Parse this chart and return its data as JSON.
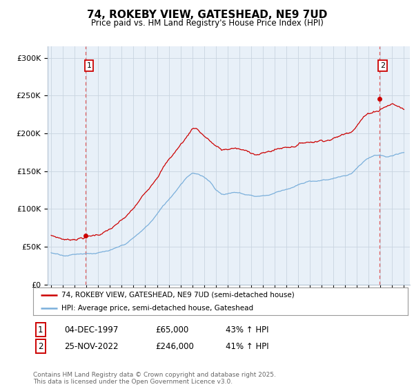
{
  "title_line1": "74, ROKEBY VIEW, GATESHEAD, NE9 7UD",
  "title_line2": "Price paid vs. HM Land Registry's House Price Index (HPI)",
  "ylabel_ticks": [
    "£0",
    "£50K",
    "£100K",
    "£150K",
    "£200K",
    "£250K",
    "£300K"
  ],
  "ytick_values": [
    0,
    50000,
    100000,
    150000,
    200000,
    250000,
    300000
  ],
  "ylim": [
    0,
    315000
  ],
  "xlim_start": 1994.7,
  "xlim_end": 2025.5,
  "legend_line1": "74, ROKEBY VIEW, GATESHEAD, NE9 7UD (semi-detached house)",
  "legend_line2": "HPI: Average price, semi-detached house, Gateshead",
  "transaction1_date": "04-DEC-1997",
  "transaction1_price": "£65,000",
  "transaction1_hpi": "43% ↑ HPI",
  "transaction1_x": 1997.92,
  "transaction1_y": 65000,
  "transaction2_date": "25-NOV-2022",
  "transaction2_price": "£246,000",
  "transaction2_hpi": "41% ↑ HPI",
  "transaction2_x": 2022.9,
  "transaction2_y": 246000,
  "line_color_red": "#cc0000",
  "line_color_blue": "#7aafdb",
  "dashed_color": "#e06060",
  "bg_chart": "#e8f0f8",
  "footer_text": "Contains HM Land Registry data © Crown copyright and database right 2025.\nThis data is licensed under the Open Government Licence v3.0.",
  "background_color": "#ffffff",
  "grid_color": "#c8d4e0"
}
